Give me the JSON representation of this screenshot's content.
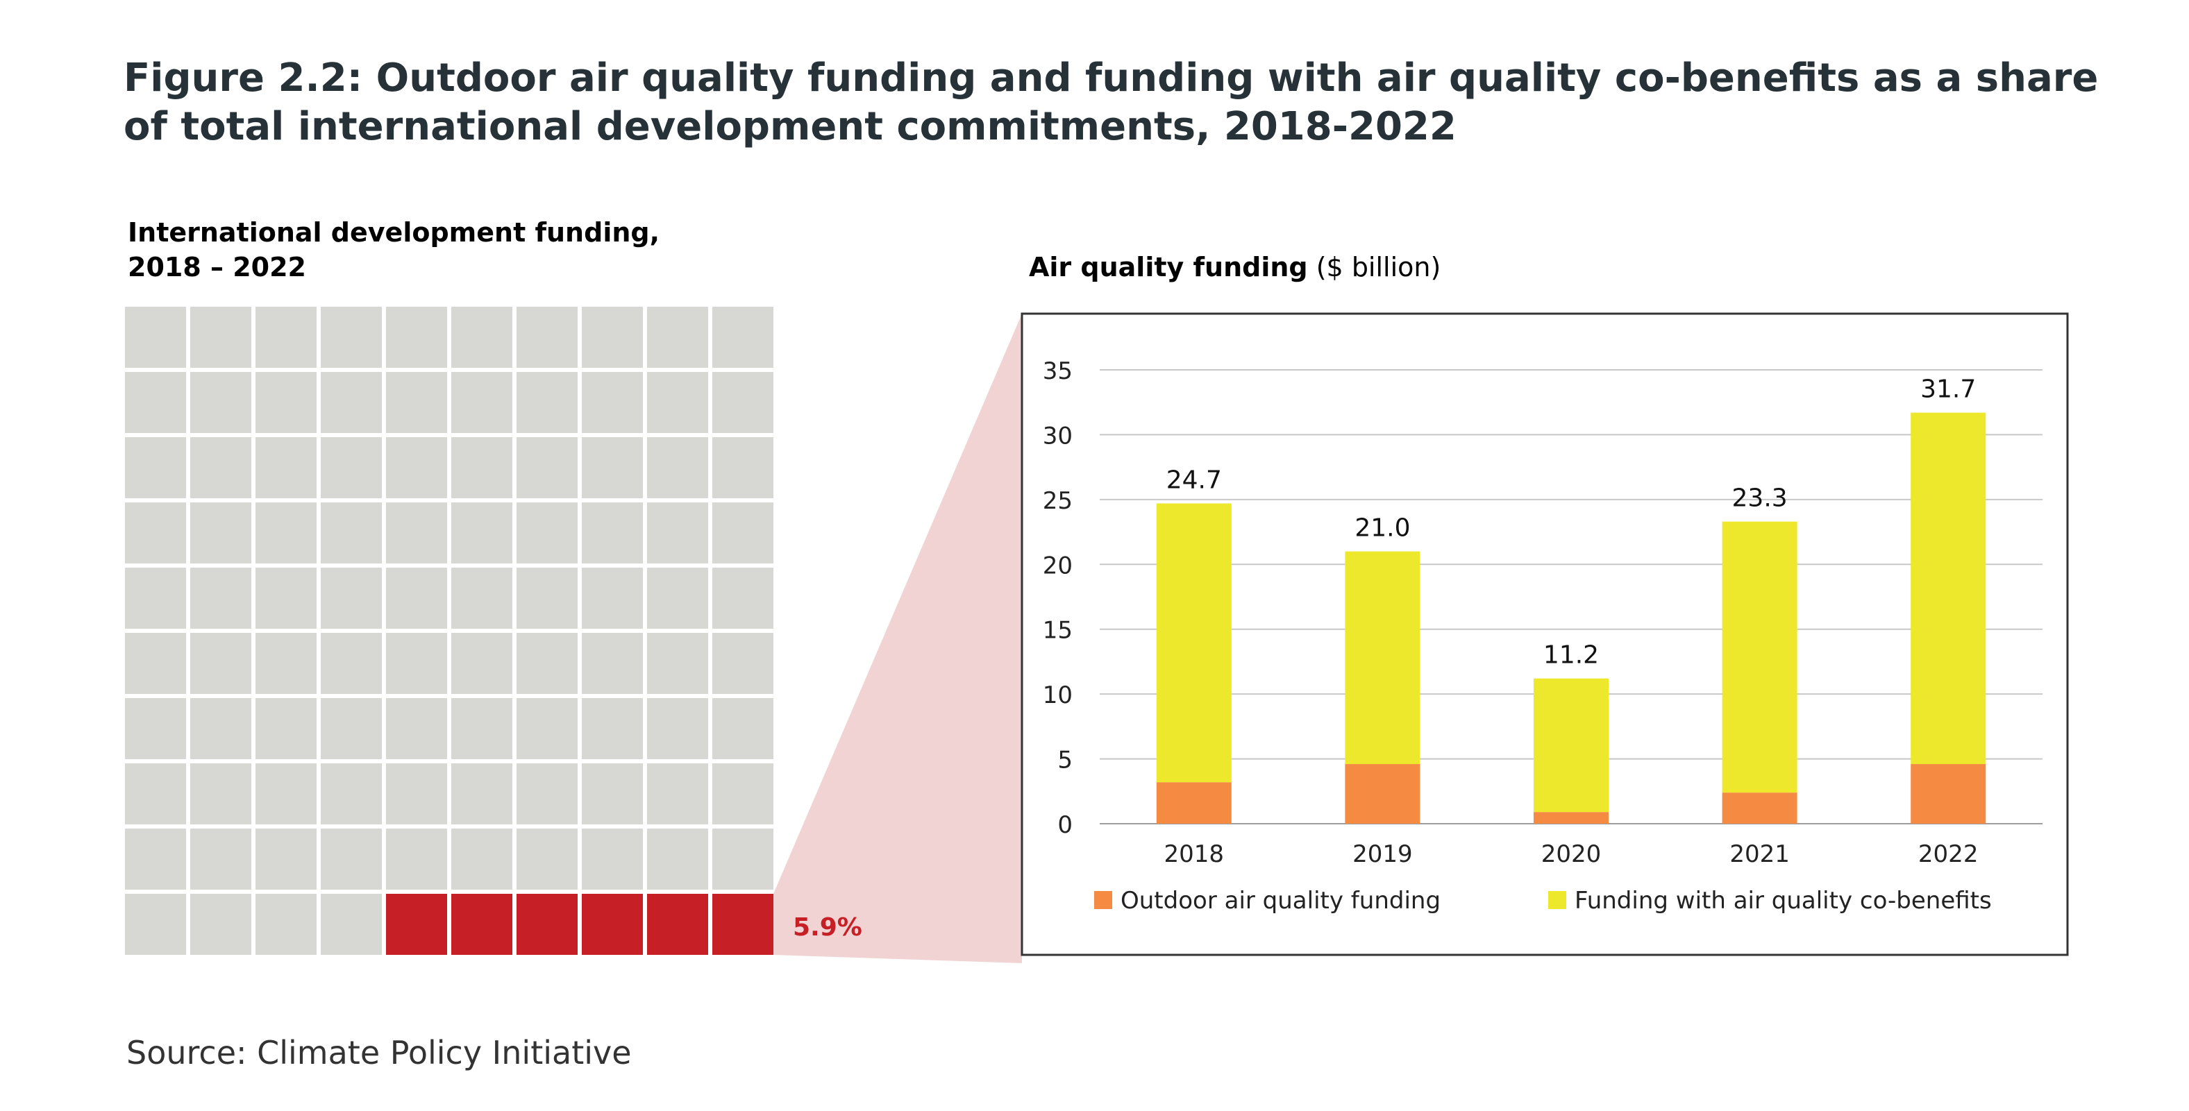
{
  "figure": {
    "title": "Figure 2.2: Outdoor air quality funding and funding with air quality co-benefits as a share of total international development commitments, 2018-2022",
    "source": "Source: Climate Policy Initiative"
  },
  "chart_data": [
    {
      "type": "waffle",
      "title_line1": "International development funding,",
      "title_line2": "2018 – 2022",
      "rows": 10,
      "cols": 10,
      "highlighted_cells": 6,
      "highlight_label": "5.9%",
      "highlight_value": 5.9,
      "colors": {
        "cell": "#d7d8d3",
        "highlight": "#c62026",
        "label": "#c62026",
        "zoom": "#f2d3d4"
      }
    },
    {
      "type": "bar",
      "stacked": true,
      "title": "Air quality funding",
      "title_suffix": "($ billion)",
      "categories": [
        "2018",
        "2019",
        "2020",
        "2021",
        "2022"
      ],
      "series": [
        {
          "name": "Outdoor air quality funding",
          "color": "#f58a42",
          "values": [
            3.2,
            4.6,
            0.9,
            2.4,
            4.6
          ]
        },
        {
          "name": "Funding with air quality co-benefits",
          "color": "#ede82c",
          "values": [
            21.5,
            16.4,
            10.3,
            20.9,
            27.1
          ]
        }
      ],
      "totals": [
        "24.7",
        "21.0",
        "11.2",
        "23.3",
        "31.7"
      ],
      "ylim": [
        0,
        35
      ],
      "yticks": [
        0,
        5,
        10,
        15,
        20,
        25,
        30,
        35
      ],
      "grid": true,
      "legend": "bottom"
    }
  ]
}
